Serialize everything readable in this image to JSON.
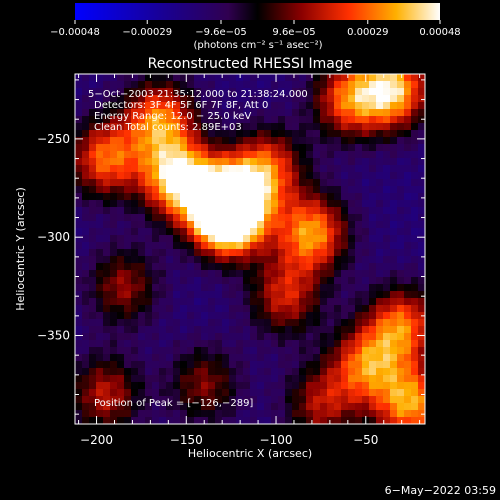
{
  "chart_data": {
    "type": "heatmap",
    "title": "Reconstructed RHESSI Image",
    "xlabel": "Heliocentric X (arcsec)",
    "ylabel": "Heliocentric Y (arcsec)",
    "xlim": [
      -212,
      -17
    ],
    "ylim": [
      -395,
      -217
    ],
    "x_ticks": [
      {
        "value": -200,
        "label": "−200"
      },
      {
        "value": -150,
        "label": "−150"
      },
      {
        "value": -100,
        "label": "−100"
      },
      {
        "value": -50,
        "label": "−50"
      }
    ],
    "y_ticks": [
      {
        "value": -250,
        "label": "−250"
      },
      {
        "value": -300,
        "label": "−300"
      },
      {
        "value": -350,
        "label": "−350"
      }
    ],
    "colorbar": {
      "min": -0.00048,
      "max": 0.00048,
      "ticks": [
        {
          "value": -0.00048,
          "label": "−0.00048"
        },
        {
          "value": -0.00029,
          "label": "−0.00029"
        },
        {
          "value": -9.6e-05,
          "label": "−9.6e−05"
        },
        {
          "value": 9.6e-05,
          "label": "9.6e−05"
        },
        {
          "value": 0.00029,
          "label": "0.00029"
        },
        {
          "value": 0.00048,
          "label": "0.00048"
        }
      ],
      "unit_label": "(photons cm⁻² s⁻¹ asec⁻²)"
    },
    "annotations": [
      "5−Oct−2003 21:35:12.000 to 21:38:24.000",
      "Detectors: 3F 4F 5F 6F 7F 8F, Att 0",
      "Energy Range: 12.0 − 25.0 keV",
      "Clean     Total counts: 2.89E+03"
    ],
    "peak_label": "Position of Peak = [−126,−289]",
    "peak": {
      "x": -126,
      "y": -289
    },
    "sources": [
      {
        "x": -155,
        "y": -270,
        "value": 0.00044
      },
      {
        "x": -128,
        "y": -283,
        "value": 0.00046
      },
      {
        "x": -126,
        "y": -289,
        "value": 0.00048
      },
      {
        "x": -165,
        "y": -240,
        "value": 0.0003
      },
      {
        "x": -195,
        "y": -260,
        "value": 0.00028
      },
      {
        "x": -105,
        "y": -265,
        "value": 0.00026
      },
      {
        "x": -80,
        "y": -298,
        "value": 0.00034
      },
      {
        "x": -35,
        "y": -225,
        "value": 0.0004
      },
      {
        "x": -60,
        "y": -230,
        "value": 0.00025
      },
      {
        "x": -30,
        "y": -345,
        "value": 0.00028
      },
      {
        "x": -50,
        "y": -365,
        "value": 0.00026
      },
      {
        "x": -25,
        "y": -385,
        "value": 0.00034
      },
      {
        "x": -95,
        "y": -330,
        "value": 0.00018
      },
      {
        "x": -195,
        "y": -380,
        "value": 0.00016
      },
      {
        "x": -185,
        "y": -325,
        "value": 0.00012
      },
      {
        "x": -140,
        "y": -375,
        "value": 0.0001
      },
      {
        "x": -75,
        "y": -385,
        "value": 0.00014
      }
    ]
  },
  "footer": {
    "date": "6−May−2022 03:59"
  }
}
